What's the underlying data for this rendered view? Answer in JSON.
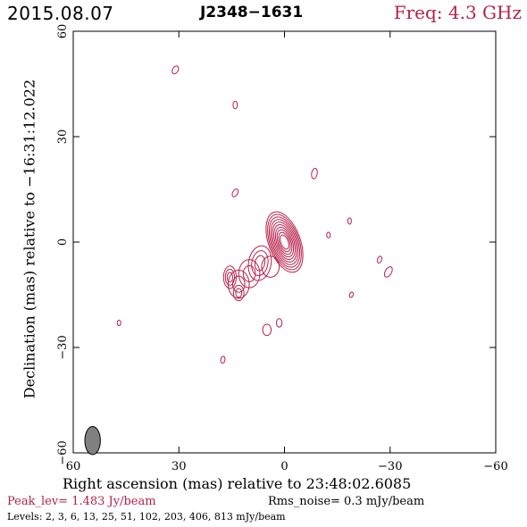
{
  "header": {
    "date": "2015.08.07",
    "source": "J2348−1631",
    "freq": "Freq: 4.3 GHz"
  },
  "colors": {
    "contour": "#b8204a",
    "beam": "#808080",
    "frame": "#000000"
  },
  "chart_data": {
    "type": "contour",
    "xlabel": "Right ascension (mas) relative to 23:48:02.6085",
    "ylabel": "Declination (mas) relative to −16:31:12.022",
    "xlim": [
      60,
      -60
    ],
    "ylim": [
      -60,
      60
    ],
    "xticks": [
      60,
      30,
      0,
      -30,
      -60
    ],
    "yticks": [
      -60,
      -30,
      0,
      30,
      60
    ],
    "xtick_labels": [
      "60",
      "30",
      "0",
      "−30",
      "−60"
    ],
    "ytick_labels": [
      "−60",
      "−30",
      "0",
      "30",
      "60"
    ],
    "peak_text": "Peak_lev=  1.483 Jy/beam",
    "rms_text": "Rms_noise=  0.3 mJy/beam",
    "levels_text": "Levels:   2,   3,   6,  13,  25,  51, 102, 203, 406, 813 mJy/beam",
    "levels_mJy": [
      2,
      3,
      6,
      13,
      25,
      51,
      102,
      203,
      406,
      813
    ],
    "core": {
      "x": 0,
      "y": 0,
      "n_contours": 10,
      "rx": 4.5,
      "ry": 9,
      "pa": -20
    },
    "components": [
      {
        "x": 7,
        "y": -6,
        "rx": 3.2,
        "ry": 5,
        "pa": 10,
        "n": 3
      },
      {
        "x": 4,
        "y": -7,
        "rx": 2.5,
        "ry": 3,
        "pa": 0,
        "n": 1
      },
      {
        "x": 10,
        "y": -9,
        "rx": 3,
        "ry": 4,
        "pa": 0,
        "n": 2
      },
      {
        "x": 13,
        "y": -12,
        "rx": 3,
        "ry": 4,
        "pa": 0,
        "n": 2
      },
      {
        "x": 15.5,
        "y": -10,
        "rx": 1.8,
        "ry": 3.2,
        "pa": 0,
        "n": 3
      },
      {
        "x": 13,
        "y": -14.5,
        "rx": 1.5,
        "ry": 2.2,
        "pa": 0,
        "n": 2
      },
      {
        "x": 5,
        "y": -25,
        "rx": 1.2,
        "ry": 1.6,
        "pa": 0,
        "n": 1
      },
      {
        "x": 1.5,
        "y": -23,
        "rx": 0.8,
        "ry": 1.2,
        "pa": 0,
        "n": 1
      },
      {
        "x": 31,
        "y": 49,
        "rx": 0.8,
        "ry": 1.2,
        "pa": 30,
        "n": 1
      },
      {
        "x": 14,
        "y": 39,
        "rx": 0.6,
        "ry": 1.1,
        "pa": 0,
        "n": 1
      },
      {
        "x": -8.5,
        "y": 19.5,
        "rx": 0.8,
        "ry": 1.5,
        "pa": 10,
        "n": 1
      },
      {
        "x": 14,
        "y": 14,
        "rx": 0.7,
        "ry": 1.2,
        "pa": 30,
        "n": 1
      },
      {
        "x": -18.5,
        "y": 6,
        "rx": 0.5,
        "ry": 0.9,
        "pa": 0,
        "n": 1
      },
      {
        "x": -12.5,
        "y": 2,
        "rx": 0.5,
        "ry": 0.8,
        "pa": 0,
        "n": 1
      },
      {
        "x": -27,
        "y": -5,
        "rx": 0.6,
        "ry": 1,
        "pa": 20,
        "n": 1
      },
      {
        "x": -29.5,
        "y": -8.5,
        "rx": 0.9,
        "ry": 1.6,
        "pa": 30,
        "n": 1
      },
      {
        "x": -19,
        "y": -15,
        "rx": 0.5,
        "ry": 0.8,
        "pa": 20,
        "n": 1
      },
      {
        "x": 47,
        "y": -23,
        "rx": 0.5,
        "ry": 0.8,
        "pa": 0,
        "n": 1
      },
      {
        "x": 17.5,
        "y": -33.5,
        "rx": 0.6,
        "ry": 1,
        "pa": 10,
        "n": 1
      }
    ],
    "beam": {
      "x": 54.5,
      "y": -56.5,
      "major": 4,
      "minor": 2.2,
      "pa": 0
    }
  }
}
